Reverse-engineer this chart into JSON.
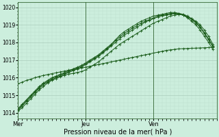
{
  "bg_color": "#cceedd",
  "grid_color_major": "#aaccbb",
  "grid_color_minor": "#bbddcc",
  "line_color": "#1a5c1a",
  "xlabel": "Pression niveau de la mer( hPa )",
  "ylim": [
    1013.7,
    1020.3
  ],
  "yticks": [
    1014,
    1015,
    1016,
    1017,
    1018,
    1019,
    1020
  ],
  "xlim": [
    0,
    47
  ],
  "xtick_positions": [
    0,
    16,
    32
  ],
  "xtick_labels": [
    "Mer",
    "Jeu",
    "Ven"
  ],
  "series": [
    [
      1014.1,
      1014.3,
      1014.55,
      1014.8,
      1015.05,
      1015.3,
      1015.5,
      1015.7,
      1015.85,
      1015.95,
      1016.05,
      1016.15,
      1016.2,
      1016.25,
      1016.3,
      1016.35,
      1016.45,
      1016.6,
      1016.75,
      1016.9,
      1017.1,
      1017.3,
      1017.5,
      1017.7,
      1017.9,
      1018.05,
      1018.2,
      1018.35,
      1018.5,
      1018.65,
      1018.8,
      1018.95,
      1019.1,
      1019.2,
      1019.3,
      1019.4,
      1019.5,
      1019.55,
      1019.6,
      1019.55,
      1019.45,
      1019.35,
      1019.2,
      1019.0,
      1018.7,
      1018.35,
      1017.9
    ],
    [
      1014.15,
      1014.4,
      1014.65,
      1014.9,
      1015.15,
      1015.4,
      1015.6,
      1015.75,
      1015.9,
      1016.0,
      1016.1,
      1016.2,
      1016.3,
      1016.4,
      1016.5,
      1016.6,
      1016.75,
      1016.9,
      1017.05,
      1017.2,
      1017.4,
      1017.6,
      1017.8,
      1018.0,
      1018.2,
      1018.4,
      1018.55,
      1018.7,
      1018.85,
      1019.0,
      1019.15,
      1019.25,
      1019.35,
      1019.45,
      1019.5,
      1019.55,
      1019.6,
      1019.65,
      1019.65,
      1019.6,
      1019.5,
      1019.35,
      1019.15,
      1018.9,
      1018.55,
      1018.2,
      1017.8
    ],
    [
      1014.2,
      1014.45,
      1014.7,
      1014.95,
      1015.2,
      1015.45,
      1015.65,
      1015.8,
      1015.95,
      1016.05,
      1016.15,
      1016.25,
      1016.35,
      1016.45,
      1016.55,
      1016.65,
      1016.8,
      1016.95,
      1017.1,
      1017.25,
      1017.45,
      1017.65,
      1017.85,
      1018.1,
      1018.3,
      1018.5,
      1018.65,
      1018.8,
      1018.95,
      1019.1,
      1019.2,
      1019.3,
      1019.4,
      1019.5,
      1019.55,
      1019.6,
      1019.65,
      1019.65,
      1019.6,
      1019.55,
      1019.45,
      1019.3,
      1019.1,
      1018.85,
      1018.5,
      1018.15,
      1017.75
    ],
    [
      1014.25,
      1014.5,
      1014.75,
      1015.0,
      1015.25,
      1015.5,
      1015.7,
      1015.85,
      1016.0,
      1016.1,
      1016.2,
      1016.3,
      1016.4,
      1016.5,
      1016.6,
      1016.7,
      1016.85,
      1017.0,
      1017.15,
      1017.3,
      1017.5,
      1017.7,
      1017.9,
      1018.15,
      1018.4,
      1018.6,
      1018.75,
      1018.9,
      1019.05,
      1019.2,
      1019.3,
      1019.4,
      1019.5,
      1019.55,
      1019.6,
      1019.65,
      1019.7,
      1019.7,
      1019.65,
      1019.55,
      1019.4,
      1019.2,
      1019.0,
      1018.7,
      1018.35,
      1018.0,
      1017.6
    ],
    [
      1015.65,
      1015.75,
      1015.85,
      1015.92,
      1016.0,
      1016.07,
      1016.13,
      1016.18,
      1016.23,
      1016.28,
      1016.33,
      1016.38,
      1016.43,
      1016.47,
      1016.51,
      1016.55,
      1016.6,
      1016.65,
      1016.7,
      1016.75,
      1016.8,
      1016.85,
      1016.9,
      1016.95,
      1017.0,
      1017.05,
      1017.1,
      1017.15,
      1017.2,
      1017.25,
      1017.3,
      1017.35,
      1017.4,
      1017.45,
      1017.5,
      1017.55,
      1017.58,
      1017.61,
      1017.64,
      1017.65,
      1017.66,
      1017.67,
      1017.68,
      1017.69,
      1017.7,
      1017.71,
      1017.72
    ]
  ]
}
